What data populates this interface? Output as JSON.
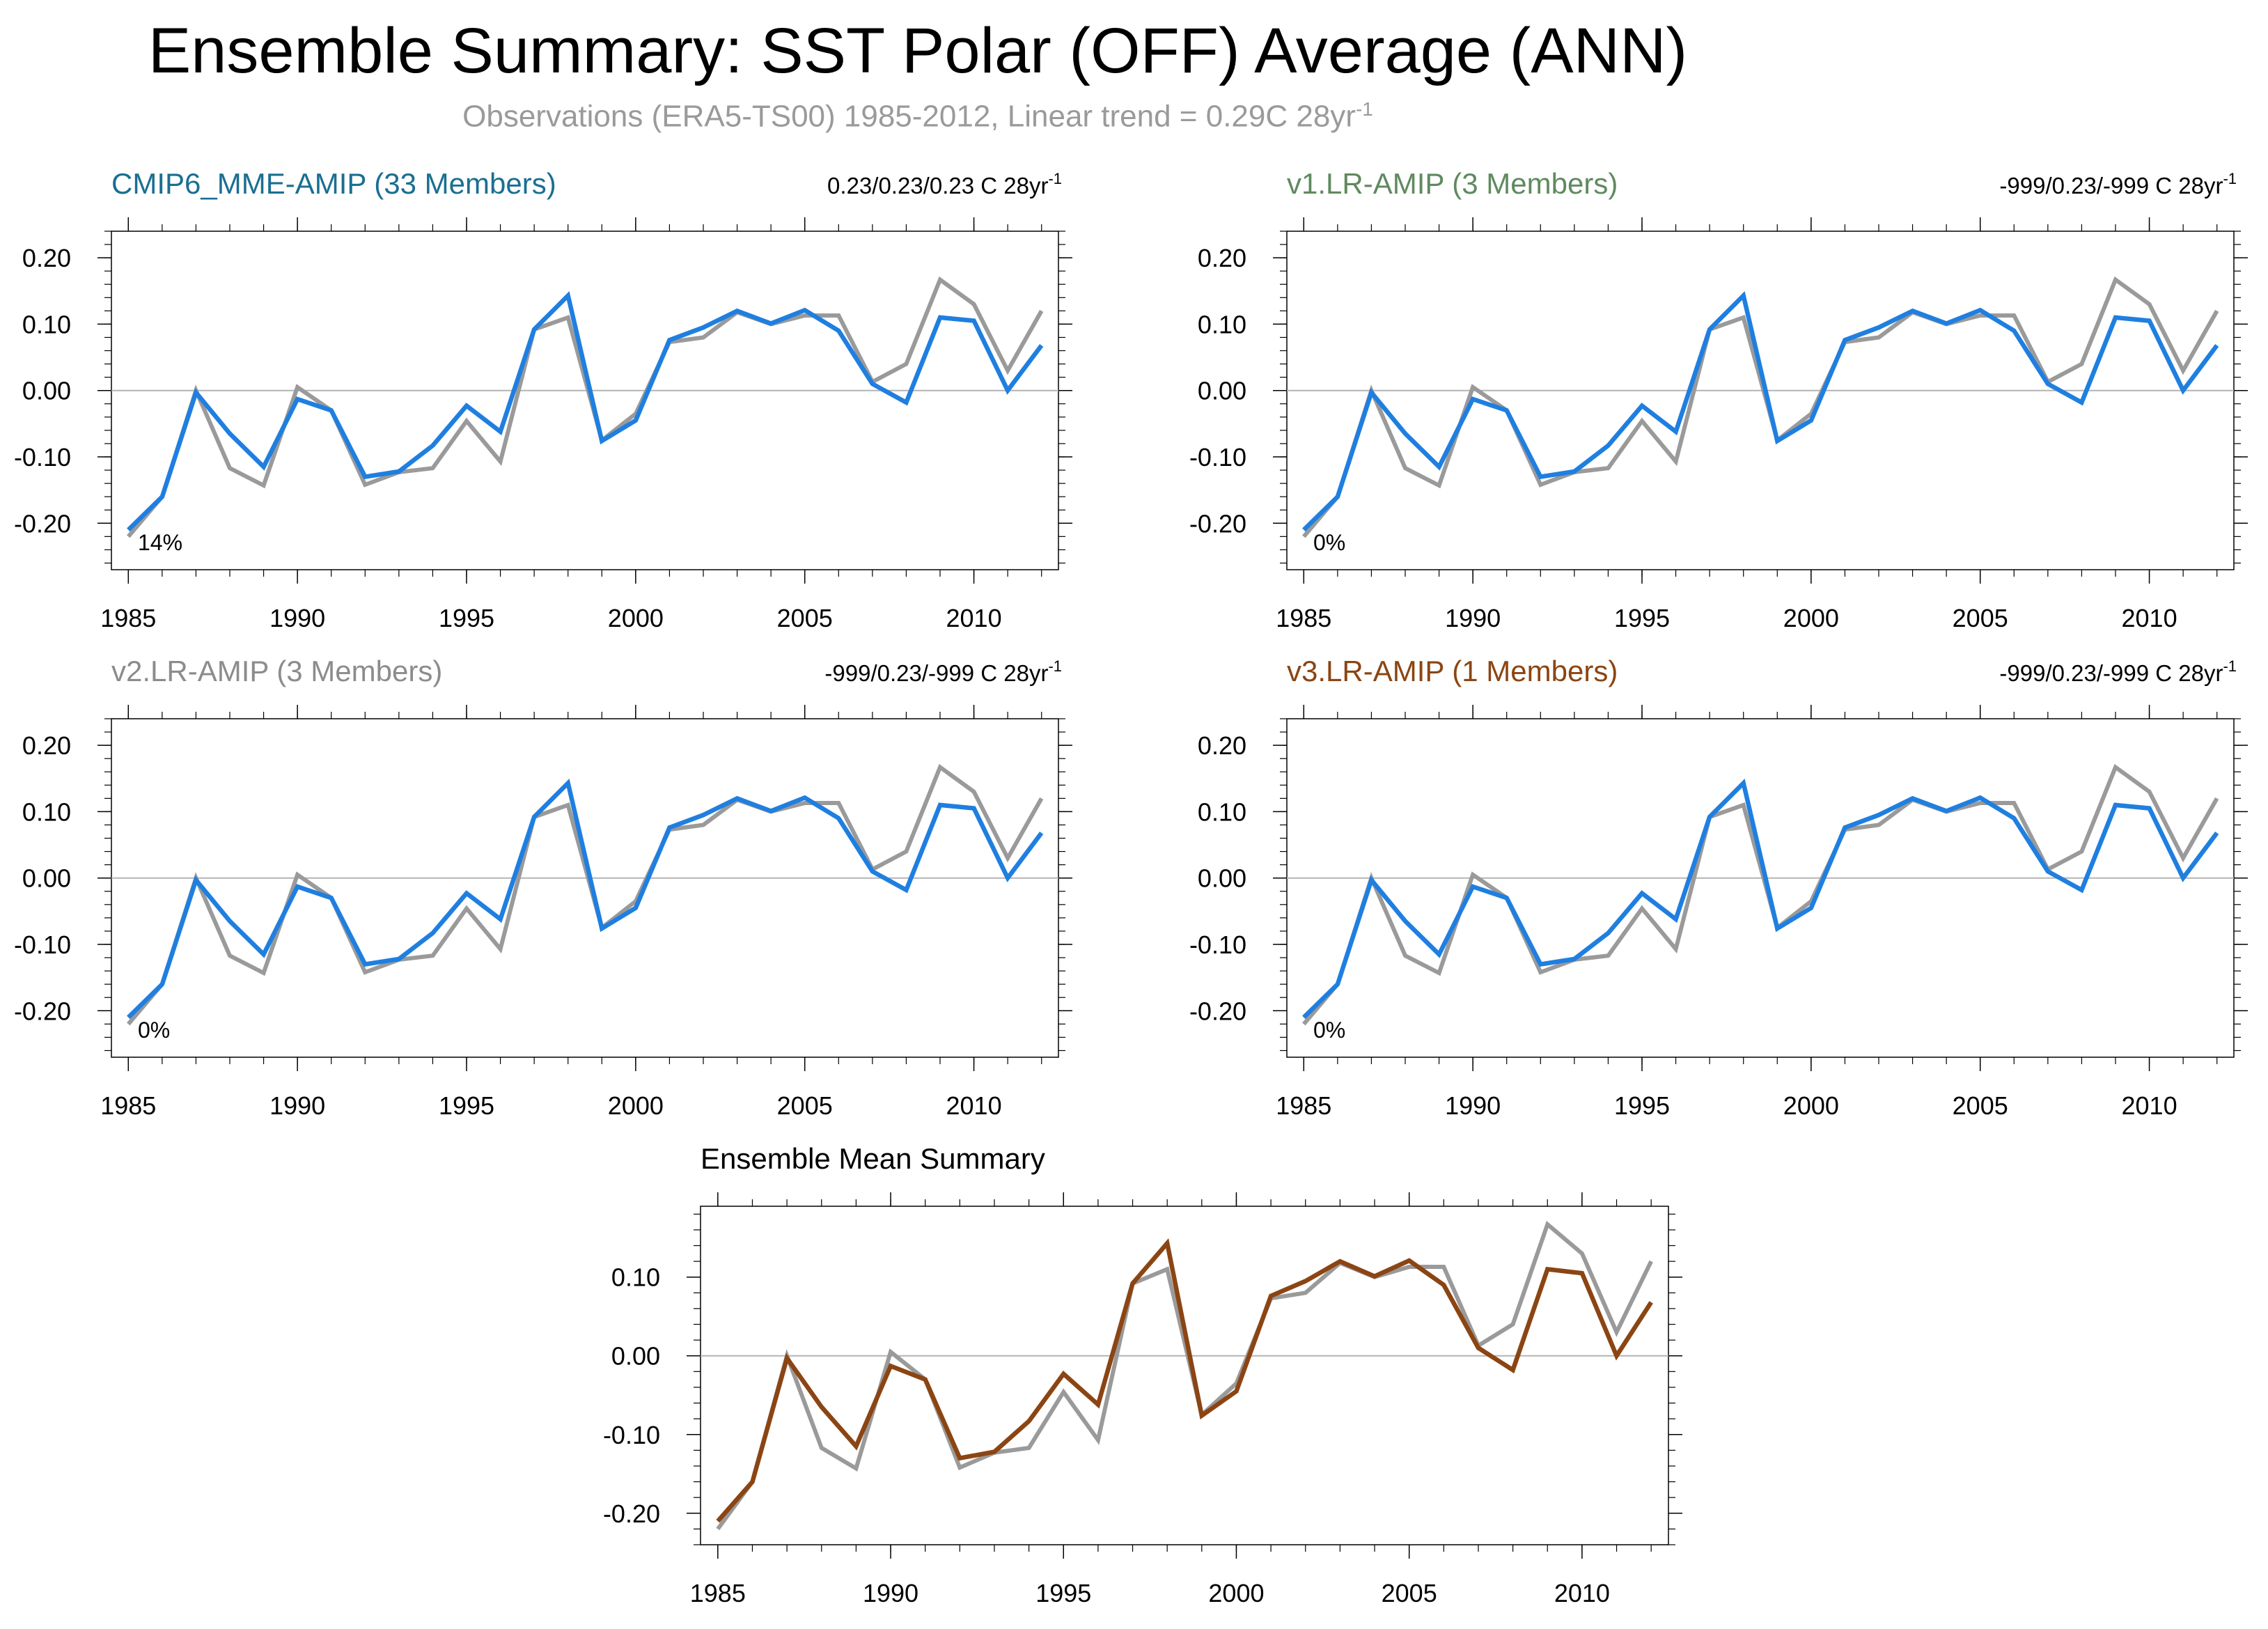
{
  "title": "Ensemble Summary: SST Polar (OFF) Average (ANN)",
  "subtitle": {
    "text": "Observations (ERA5-TS00) 1985-2012, Linear trend = 0.29C 28yr",
    "superscript": "-1"
  },
  "colors": {
    "observations": "#9a9a9a",
    "model": "#1f7fe0",
    "ensemble_mean": "#8b4513",
    "zero_line": "#b4b4b4",
    "cmip6_title": "#1a6f91",
    "v1_title": "#5f8a5f",
    "v2_title": "#8c8c8c",
    "v3_title": "#8b4513"
  },
  "chart_data": [
    {
      "type": "line",
      "title": "CMIP6_MME-AMIP (33 Members)",
      "title_color": "#1a6f91",
      "trend_label": "0.23/0.23/0.23 C 28yr",
      "trend_superscript": "-1",
      "percent_label": "14%",
      "x": [
        1985,
        1986,
        1987,
        1988,
        1989,
        1990,
        1991,
        1992,
        1993,
        1994,
        1995,
        1996,
        1997,
        1998,
        1999,
        2000,
        2001,
        2002,
        2003,
        2004,
        2005,
        2006,
        2007,
        2008,
        2009,
        2010,
        2011,
        2012
      ],
      "xticks": [
        1985,
        1990,
        1995,
        2000,
        2005,
        2010
      ],
      "yticks": [
        -0.2,
        -0.1,
        0.0,
        0.1,
        0.2
      ],
      "ytick_labels": [
        "-0.20",
        "-0.10",
        "0.00",
        "0.10",
        "0.20"
      ],
      "ylim": [
        -0.27,
        0.24
      ],
      "series": [
        {
          "color": "#9a9a9a",
          "values": [
            -0.22,
            -0.16,
            0.0,
            -0.117,
            -0.143,
            0.005,
            -0.03,
            -0.142,
            -0.123,
            -0.117,
            -0.046,
            -0.107,
            0.092,
            0.11,
            -0.075,
            -0.035,
            0.073,
            0.08,
            0.118,
            0.1,
            0.113,
            0.113,
            0.013,
            0.04,
            0.167,
            0.13,
            0.03,
            0.12
          ]
        },
        {
          "color": "#1f7fe0",
          "values": [
            -0.21,
            -0.16,
            -0.003,
            -0.065,
            -0.115,
            -0.013,
            -0.03,
            -0.13,
            -0.122,
            -0.083,
            -0.023,
            -0.062,
            0.092,
            0.143,
            -0.076,
            -0.045,
            0.076,
            0.095,
            0.12,
            0.101,
            0.121,
            0.09,
            0.01,
            -0.018,
            0.11,
            0.105,
            0.0,
            0.068
          ]
        }
      ]
    },
    {
      "type": "line",
      "title": "v1.LR-AMIP (3 Members)",
      "title_color": "#5f8a5f",
      "trend_label": "-999/0.23/-999 C 28yr",
      "trend_superscript": "-1",
      "percent_label": "0%",
      "x": [
        1985,
        1986,
        1987,
        1988,
        1989,
        1990,
        1991,
        1992,
        1993,
        1994,
        1995,
        1996,
        1997,
        1998,
        1999,
        2000,
        2001,
        2002,
        2003,
        2004,
        2005,
        2006,
        2007,
        2008,
        2009,
        2010,
        2011,
        2012
      ],
      "xticks": [
        1985,
        1990,
        1995,
        2000,
        2005,
        2010
      ],
      "yticks": [
        -0.2,
        -0.1,
        0.0,
        0.1,
        0.2
      ],
      "ytick_labels": [
        "-0.20",
        "-0.10",
        "0.00",
        "0.10",
        "0.20"
      ],
      "ylim": [
        -0.27,
        0.24
      ],
      "series": [
        {
          "color": "#9a9a9a",
          "values": [
            -0.22,
            -0.16,
            0.0,
            -0.117,
            -0.143,
            0.005,
            -0.03,
            -0.142,
            -0.123,
            -0.117,
            -0.046,
            -0.107,
            0.092,
            0.11,
            -0.075,
            -0.035,
            0.073,
            0.08,
            0.118,
            0.1,
            0.113,
            0.113,
            0.013,
            0.04,
            0.167,
            0.13,
            0.03,
            0.12
          ]
        },
        {
          "color": "#1f7fe0",
          "values": [
            -0.21,
            -0.16,
            -0.003,
            -0.065,
            -0.115,
            -0.013,
            -0.03,
            -0.13,
            -0.122,
            -0.083,
            -0.023,
            -0.062,
            0.092,
            0.143,
            -0.076,
            -0.045,
            0.076,
            0.095,
            0.12,
            0.101,
            0.121,
            0.09,
            0.01,
            -0.018,
            0.11,
            0.105,
            0.0,
            0.068
          ]
        }
      ]
    },
    {
      "type": "line",
      "title": "v2.LR-AMIP (3 Members)",
      "title_color": "#8c8c8c",
      "trend_label": "-999/0.23/-999 C 28yr",
      "trend_superscript": "-1",
      "percent_label": "0%",
      "x": [
        1985,
        1986,
        1987,
        1988,
        1989,
        1990,
        1991,
        1992,
        1993,
        1994,
        1995,
        1996,
        1997,
        1998,
        1999,
        2000,
        2001,
        2002,
        2003,
        2004,
        2005,
        2006,
        2007,
        2008,
        2009,
        2010,
        2011,
        2012
      ],
      "xticks": [
        1985,
        1990,
        1995,
        2000,
        2005,
        2010
      ],
      "yticks": [
        -0.2,
        -0.1,
        0.0,
        0.1,
        0.2
      ],
      "ytick_labels": [
        "-0.20",
        "-0.10",
        "0.00",
        "0.10",
        "0.20"
      ],
      "ylim": [
        -0.27,
        0.24
      ],
      "series": [
        {
          "color": "#9a9a9a",
          "values": [
            -0.22,
            -0.16,
            0.0,
            -0.117,
            -0.143,
            0.005,
            -0.03,
            -0.142,
            -0.123,
            -0.117,
            -0.046,
            -0.107,
            0.092,
            0.11,
            -0.075,
            -0.035,
            0.073,
            0.08,
            0.118,
            0.1,
            0.113,
            0.113,
            0.013,
            0.04,
            0.167,
            0.13,
            0.03,
            0.12
          ]
        },
        {
          "color": "#1f7fe0",
          "values": [
            -0.21,
            -0.16,
            -0.003,
            -0.065,
            -0.115,
            -0.013,
            -0.03,
            -0.13,
            -0.122,
            -0.083,
            -0.023,
            -0.062,
            0.092,
            0.143,
            -0.076,
            -0.045,
            0.076,
            0.095,
            0.12,
            0.101,
            0.121,
            0.09,
            0.01,
            -0.018,
            0.11,
            0.105,
            0.0,
            0.068
          ]
        }
      ]
    },
    {
      "type": "line",
      "title": "v3.LR-AMIP (1 Members)",
      "title_color": "#8b4513",
      "trend_label": "-999/0.23/-999 C 28yr",
      "trend_superscript": "-1",
      "percent_label": "0%",
      "x": [
        1985,
        1986,
        1987,
        1988,
        1989,
        1990,
        1991,
        1992,
        1993,
        1994,
        1995,
        1996,
        1997,
        1998,
        1999,
        2000,
        2001,
        2002,
        2003,
        2004,
        2005,
        2006,
        2007,
        2008,
        2009,
        2010,
        2011,
        2012
      ],
      "xticks": [
        1985,
        1990,
        1995,
        2000,
        2005,
        2010
      ],
      "yticks": [
        -0.2,
        -0.1,
        0.0,
        0.1,
        0.2
      ],
      "ytick_labels": [
        "-0.20",
        "-0.10",
        "0.00",
        "0.10",
        "0.20"
      ],
      "ylim": [
        -0.27,
        0.24
      ],
      "series": [
        {
          "color": "#9a9a9a",
          "values": [
            -0.22,
            -0.16,
            0.0,
            -0.117,
            -0.143,
            0.005,
            -0.03,
            -0.142,
            -0.123,
            -0.117,
            -0.046,
            -0.107,
            0.092,
            0.11,
            -0.075,
            -0.035,
            0.073,
            0.08,
            0.118,
            0.1,
            0.113,
            0.113,
            0.013,
            0.04,
            0.167,
            0.13,
            0.03,
            0.12
          ]
        },
        {
          "color": "#1f7fe0",
          "values": [
            -0.21,
            -0.16,
            -0.003,
            -0.065,
            -0.115,
            -0.013,
            -0.03,
            -0.13,
            -0.122,
            -0.083,
            -0.023,
            -0.062,
            0.092,
            0.143,
            -0.076,
            -0.045,
            0.076,
            0.095,
            0.12,
            0.101,
            0.121,
            0.09,
            0.01,
            -0.018,
            0.11,
            0.105,
            0.0,
            0.068
          ]
        }
      ]
    },
    {
      "type": "line",
      "title": "Ensemble Mean Summary",
      "title_color": "#000000",
      "x": [
        1985,
        1986,
        1987,
        1988,
        1989,
        1990,
        1991,
        1992,
        1993,
        1994,
        1995,
        1996,
        1997,
        1998,
        1999,
        2000,
        2001,
        2002,
        2003,
        2004,
        2005,
        2006,
        2007,
        2008,
        2009,
        2010,
        2011,
        2012
      ],
      "xticks": [
        1985,
        1990,
        1995,
        2000,
        2005,
        2010
      ],
      "yticks": [
        -0.2,
        -0.1,
        0.0,
        0.1
      ],
      "ytick_labels": [
        "-0.20",
        "-0.10",
        "0.00",
        "0.10"
      ],
      "ylim": [
        -0.24,
        0.19
      ],
      "series": [
        {
          "color": "#9a9a9a",
          "values": [
            -0.22,
            -0.16,
            0.0,
            -0.117,
            -0.143,
            0.005,
            -0.03,
            -0.142,
            -0.123,
            -0.117,
            -0.046,
            -0.107,
            0.092,
            0.11,
            -0.075,
            -0.035,
            0.073,
            0.08,
            0.118,
            0.1,
            0.113,
            0.113,
            0.013,
            0.04,
            0.167,
            0.13,
            0.03,
            0.12
          ]
        },
        {
          "color": "#8b4513",
          "values": [
            -0.21,
            -0.16,
            -0.003,
            -0.065,
            -0.115,
            -0.013,
            -0.03,
            -0.13,
            -0.122,
            -0.083,
            -0.023,
            -0.062,
            0.092,
            0.143,
            -0.076,
            -0.045,
            0.076,
            0.095,
            0.12,
            0.101,
            0.121,
            0.09,
            0.01,
            -0.018,
            0.11,
            0.105,
            0.0,
            0.068
          ]
        }
      ]
    }
  ]
}
